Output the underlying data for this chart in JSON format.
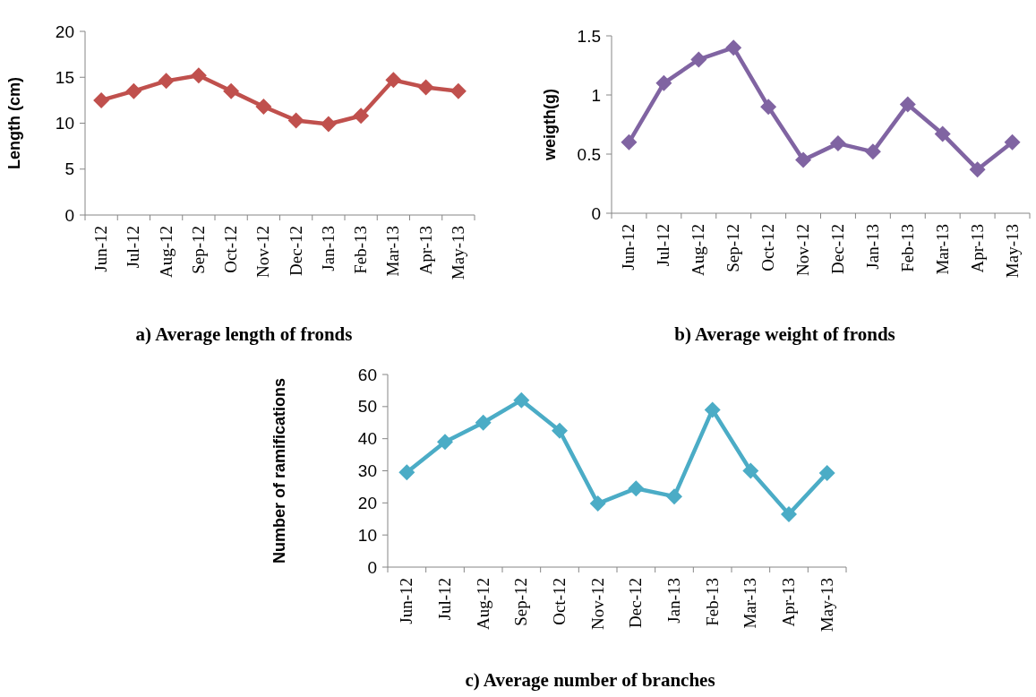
{
  "chart_data": [
    {
      "type": "line",
      "title": "a) Average length of fronds",
      "ylabel": "Length (cm)",
      "categories": [
        "Jun-12",
        "Jul-12",
        "Aug-12",
        "Sep-12",
        "Oct-12",
        "Nov-12",
        "Dec-12",
        "Jan-13",
        "Feb-13",
        "Mar-13",
        "Apr-13",
        "May-13"
      ],
      "series": [
        {
          "color": "#c0504d",
          "values": [
            12.5,
            13.5,
            14.6,
            15.2,
            13.5,
            11.8,
            10.3,
            9.9,
            10.8,
            14.7,
            13.9,
            13.5
          ]
        }
      ],
      "ylim": [
        0,
        20
      ],
      "yticks": [
        0,
        5,
        10,
        15,
        20
      ],
      "marker": "diamond",
      "grid": false
    },
    {
      "type": "line",
      "title": "b) Average weight of fronds",
      "ylabel": "weigth(g)",
      "categories": [
        "Jun-12",
        "Jul-12",
        "Aug-12",
        "Sep-12",
        "Oct-12",
        "Nov-12",
        "Dec-12",
        "Jan-13",
        "Feb-13",
        "Mar-13",
        "Apr-13",
        "May-13"
      ],
      "series": [
        {
          "color": "#8064a2",
          "values": [
            0.6,
            1.1,
            1.3,
            1.4,
            0.9,
            0.45,
            0.59,
            0.52,
            0.92,
            0.67,
            0.37,
            0.6
          ]
        }
      ],
      "ylim": [
        0,
        1.5
      ],
      "yticks": [
        0,
        0.5,
        1,
        1.5
      ],
      "marker": "diamond",
      "grid": false
    },
    {
      "type": "line",
      "title": "c) Average number of branches",
      "ylabel": "Number of ramifications",
      "categories": [
        "Jun-12",
        "Jul-12",
        "Aug-12",
        "Sep-12",
        "Oct-12",
        "Nov-12",
        "Dec-12",
        "Jan-13",
        "Feb-13",
        "Mar-13",
        "Apr-13",
        "May-13"
      ],
      "series": [
        {
          "color": "#4bacc6",
          "values": [
            29.5,
            39,
            45,
            52,
            42.5,
            19.8,
            24.5,
            22,
            49,
            30,
            16.5,
            29.3
          ]
        }
      ],
      "ylim": [
        0,
        60
      ],
      "yticks": [
        0,
        10,
        20,
        30,
        40,
        50,
        60
      ],
      "marker": "diamond",
      "grid": false
    }
  ]
}
